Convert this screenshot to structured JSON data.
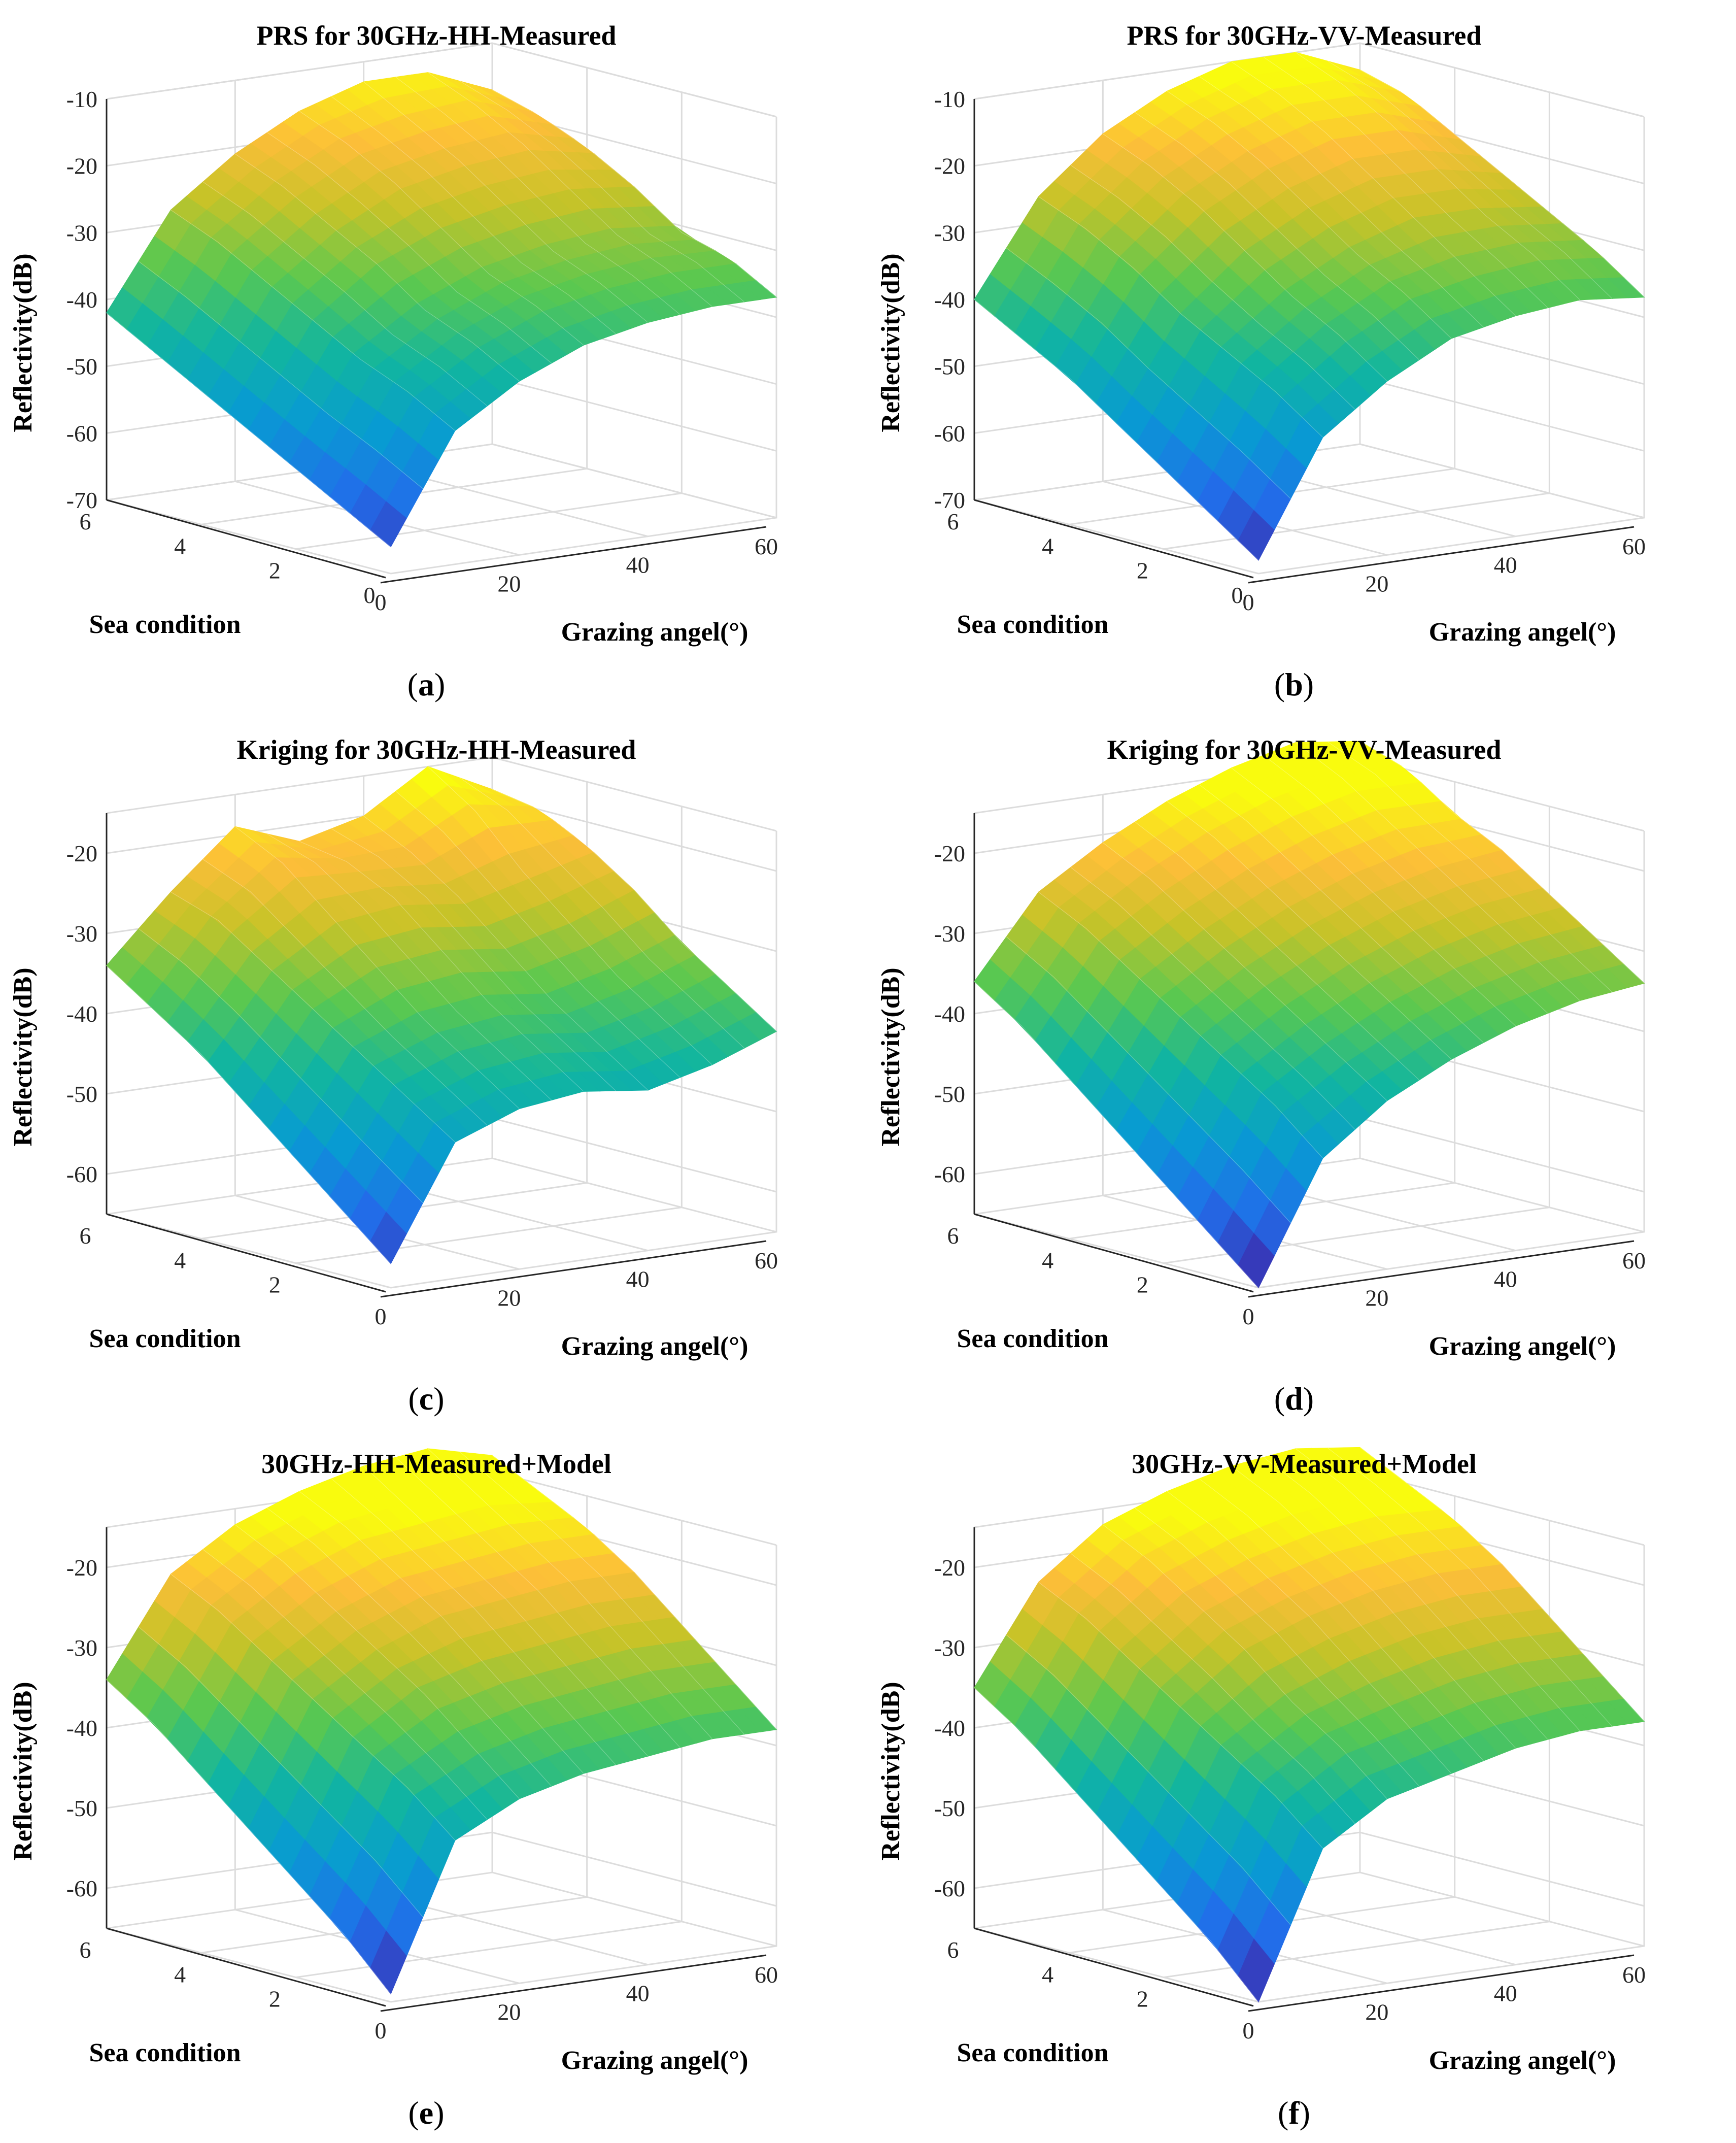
{
  "figure": {
    "panels": [
      {
        "id": "a",
        "caption_label": "a",
        "title": "PRS for 30GHz-HH-Measured",
        "variant": "prs"
      },
      {
        "id": "b",
        "caption_label": "b",
        "title": "PRS for 30GHz-VV-Measured",
        "variant": "prs"
      },
      {
        "id": "c",
        "caption_label": "c",
        "title": "Kriging for 30GHz-HH-Measured",
        "variant": "kriging"
      },
      {
        "id": "d",
        "caption_label": "d",
        "title": "Kriging for 30GHz-VV-Measured",
        "variant": "kriging"
      },
      {
        "id": "e",
        "caption_label": "e",
        "title": "30GHz-HH-Measured+Model",
        "variant": "model"
      },
      {
        "id": "f",
        "caption_label": "f",
        "title": "30GHz-VV-Measured+Model",
        "variant": "model"
      }
    ]
  },
  "chart_data": [
    {
      "type": "surface",
      "title": "PRS for 30GHz-HH-Measured",
      "xlabel": "Grazing angel(°)",
      "ylabel": "Sea condition",
      "zlabel": "Reflectivity(dB)",
      "xlim": [
        0,
        60
      ],
      "ylim": [
        0,
        6
      ],
      "zlim": [
        -70,
        -10
      ],
      "xticks": [
        "0",
        "20",
        "40",
        "60"
      ],
      "yticks": [
        "0",
        "2",
        "4",
        "6"
      ],
      "zticks": [
        "-70",
        "-60",
        "-50",
        "-40",
        "-30",
        "-20",
        "-10"
      ],
      "x": [
        0,
        10,
        20,
        30,
        40,
        50,
        60
      ],
      "y": [
        0,
        1,
        2,
        3,
        4,
        5,
        6
      ],
      "z": [
        [
          -66,
          -50,
          -44,
          -40,
          -38,
          -37,
          -37
        ],
        [
          -62,
          -46,
          -40,
          -36,
          -34,
          -33,
          -33
        ],
        [
          -58,
          -43,
          -37,
          -33,
          -31,
          -30,
          -31
        ],
        [
          -54,
          -39,
          -32,
          -28,
          -26,
          -25,
          -26
        ],
        [
          -50,
          -35,
          -28,
          -23,
          -21,
          -20,
          -22
        ],
        [
          -46,
          -31,
          -24,
          -19,
          -17,
          -16,
          -19
        ],
        [
          -42,
          -28,
          -21,
          -16,
          -13,
          -13,
          -17
        ]
      ]
    },
    {
      "type": "surface",
      "title": "PRS for 30GHz-VV-Measured",
      "xlabel": "Grazing angel(°)",
      "ylabel": "Sea condition",
      "zlabel": "Reflectivity(dB)",
      "xlim": [
        0,
        60
      ],
      "ylim": [
        0,
        6
      ],
      "zlim": [
        -70,
        -10
      ],
      "xticks": [
        "0",
        "20",
        "40",
        "60"
      ],
      "yticks": [
        "0",
        "2",
        "4",
        "6"
      ],
      "zticks": [
        "-70",
        "-60",
        "-50",
        "-40",
        "-30",
        "-20",
        "-10"
      ],
      "x": [
        0,
        10,
        20,
        30,
        40,
        50,
        60
      ],
      "y": [
        0,
        1,
        2,
        3,
        4,
        5,
        6
      ],
      "z": [
        [
          -68,
          -51,
          -44,
          -39,
          -37,
          -36,
          -37
        ],
        [
          -63,
          -46,
          -39,
          -34,
          -32,
          -31,
          -32
        ],
        [
          -58,
          -42,
          -35,
          -30,
          -27,
          -27,
          -28
        ],
        [
          -53,
          -38,
          -30,
          -25,
          -22,
          -22,
          -24
        ],
        [
          -48,
          -33,
          -25,
          -20,
          -17,
          -17,
          -20
        ],
        [
          -44,
          -29,
          -21,
          -16,
          -13,
          -13,
          -16
        ],
        [
          -40,
          -26,
          -18,
          -13,
          -10,
          -10,
          -14
        ]
      ]
    },
    {
      "type": "surface",
      "title": "Kriging for 30GHz-HH-Measured",
      "xlabel": "Grazing angel(°)",
      "ylabel": "Sea condition",
      "zlabel": "Reflectivity(dB)",
      "xlim": [
        0,
        60
      ],
      "ylim": [
        0,
        6
      ],
      "zlim": [
        -65,
        -15
      ],
      "xticks": [
        "0",
        "20",
        "40",
        "60"
      ],
      "yticks": [
        "2",
        "4",
        "6"
      ],
      "zticks": [
        "-60",
        "-50",
        "-40",
        "-30",
        "-20"
      ],
      "x": [
        0,
        10,
        20,
        30,
        40,
        50,
        60
      ],
      "y": [
        0,
        1,
        2,
        3,
        4,
        5,
        6
      ],
      "z": [
        [
          -62,
          -48,
          -45,
          -44,
          -45,
          -43,
          -40
        ],
        [
          -57,
          -44,
          -41,
          -40,
          -41,
          -39,
          -36
        ],
        [
          -52,
          -40,
          -37,
          -36,
          -37,
          -35,
          -32
        ],
        [
          -47,
          -36,
          -32,
          -31,
          -32,
          -30,
          -27
        ],
        [
          -42,
          -32,
          -27,
          -26,
          -27,
          -25,
          -23
        ],
        [
          -38,
          -28,
          -22,
          -23,
          -23,
          -19,
          -20
        ],
        [
          -34,
          -26,
          -19,
          -22,
          -20,
          -15,
          -19
        ]
      ]
    },
    {
      "type": "surface",
      "title": "Kriging for 30GHz-VV-Measured",
      "xlabel": "Grazing angel(°)",
      "ylabel": "Sea condition",
      "zlabel": "Reflectivity(dB)",
      "xlim": [
        0,
        60
      ],
      "ylim": [
        0,
        6
      ],
      "zlim": [
        -65,
        -15
      ],
      "xticks": [
        "0",
        "20",
        "40",
        "60"
      ],
      "yticks": [
        "2",
        "4",
        "6"
      ],
      "zticks": [
        "-60",
        "-50",
        "-40",
        "-30",
        "-20"
      ],
      "x": [
        0,
        10,
        20,
        30,
        40,
        50,
        60
      ],
      "y": [
        0,
        1,
        2,
        3,
        4,
        5,
        6
      ],
      "z": [
        [
          -65,
          -50,
          -44,
          -40,
          -37,
          -35,
          -34
        ],
        [
          -60,
          -45,
          -40,
          -36,
          -33,
          -31,
          -30
        ],
        [
          -55,
          -41,
          -36,
          -32,
          -29,
          -27,
          -26
        ],
        [
          -50,
          -37,
          -32,
          -28,
          -25,
          -23,
          -22
        ],
        [
          -45,
          -33,
          -28,
          -24,
          -21,
          -19,
          -19
        ],
        [
          -40,
          -29,
          -24,
          -20,
          -17,
          -15,
          -15
        ],
        [
          -36,
          -26,
          -21,
          -17,
          -14,
          -12,
          -13
        ]
      ]
    },
    {
      "type": "surface",
      "title": "30GHz-HH-Measured+Model",
      "xlabel": "Grazing angel(°)",
      "ylabel": "Sea condition",
      "zlabel": "Reflectivity(dB)",
      "xlim": [
        0,
        60
      ],
      "ylim": [
        0,
        6
      ],
      "zlim": [
        -65,
        -15
      ],
      "xticks": [
        "0",
        "20",
        "40",
        "60"
      ],
      "yticks": [
        "2",
        "4",
        "6"
      ],
      "zticks": [
        "-60",
        "-50",
        "-40",
        "-30",
        "-20"
      ],
      "x": [
        0,
        10,
        20,
        30,
        40,
        50,
        60
      ],
      "y": [
        0,
        1,
        2,
        3,
        4,
        5,
        6
      ],
      "z": [
        [
          -64,
          -46,
          -42,
          -40,
          -39,
          -38,
          -38
        ],
        [
          -58,
          -41,
          -37,
          -35,
          -34,
          -33,
          -33
        ],
        [
          -53,
          -37,
          -32,
          -30,
          -29,
          -28,
          -28
        ],
        [
          -48,
          -33,
          -28,
          -25,
          -24,
          -23,
          -23
        ],
        [
          -43,
          -29,
          -24,
          -21,
          -20,
          -19,
          -19
        ],
        [
          -38,
          -25,
          -20,
          -17,
          -16,
          -15,
          -16
        ],
        [
          -34,
          -22,
          -17,
          -14,
          -12,
          -11,
          -13
        ]
      ]
    },
    {
      "type": "surface",
      "title": "30GHz-VV-Measured+Model",
      "xlabel": "Grazing angel(°)",
      "ylabel": "Sea condition",
      "zlabel": "Reflectivity(dB)",
      "xlim": [
        0,
        60
      ],
      "ylim": [
        0,
        6
      ],
      "zlim": [
        -65,
        -15
      ],
      "xticks": [
        "0",
        "20",
        "40",
        "60"
      ],
      "yticks": [
        "2",
        "4",
        "6"
      ],
      "zticks": [
        "-60",
        "-50",
        "-40",
        "-30",
        "-20"
      ],
      "x": [
        0,
        10,
        20,
        30,
        40,
        50,
        60
      ],
      "y": [
        0,
        1,
        2,
        3,
        4,
        5,
        6
      ],
      "z": [
        [
          -65,
          -47,
          -42,
          -40,
          -38,
          -37,
          -37
        ],
        [
          -59,
          -42,
          -37,
          -35,
          -33,
          -32,
          -32
        ],
        [
          -54,
          -38,
          -33,
          -30,
          -28,
          -27,
          -27
        ],
        [
          -49,
          -34,
          -28,
          -25,
          -23,
          -22,
          -22
        ],
        [
          -44,
          -30,
          -24,
          -21,
          -19,
          -18,
          -18
        ],
        [
          -39,
          -26,
          -20,
          -17,
          -15,
          -14,
          -15
        ],
        [
          -35,
          -23,
          -17,
          -14,
          -12,
          -11,
          -12
        ]
      ]
    }
  ]
}
